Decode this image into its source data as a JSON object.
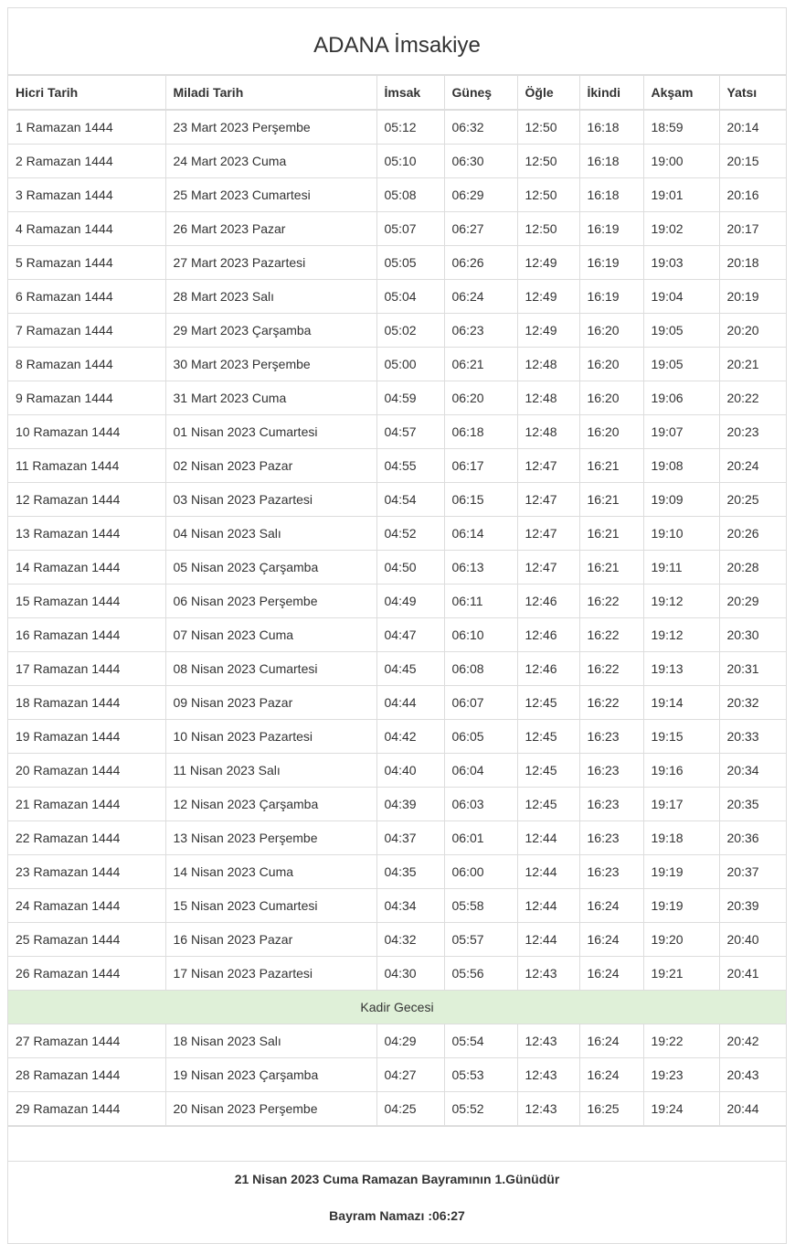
{
  "title": "ADANA İmsakiye",
  "columns": [
    "Hicri Tarih",
    "Miladi Tarih",
    "İmsak",
    "Güneş",
    "Öğle",
    "İkindi",
    "Akşam",
    "Yatsı"
  ],
  "rows": [
    [
      "1 Ramazan 1444",
      "23 Mart 2023 Perşembe",
      "05:12",
      "06:32",
      "12:50",
      "16:18",
      "18:59",
      "20:14"
    ],
    [
      "2 Ramazan 1444",
      "24 Mart 2023 Cuma",
      "05:10",
      "06:30",
      "12:50",
      "16:18",
      "19:00",
      "20:15"
    ],
    [
      "3 Ramazan 1444",
      "25 Mart 2023 Cumartesi",
      "05:08",
      "06:29",
      "12:50",
      "16:18",
      "19:01",
      "20:16"
    ],
    [
      "4 Ramazan 1444",
      "26 Mart 2023 Pazar",
      "05:07",
      "06:27",
      "12:50",
      "16:19",
      "19:02",
      "20:17"
    ],
    [
      "5 Ramazan 1444",
      "27 Mart 2023 Pazartesi",
      "05:05",
      "06:26",
      "12:49",
      "16:19",
      "19:03",
      "20:18"
    ],
    [
      "6 Ramazan 1444",
      "28 Mart 2023 Salı",
      "05:04",
      "06:24",
      "12:49",
      "16:19",
      "19:04",
      "20:19"
    ],
    [
      "7 Ramazan 1444",
      "29 Mart 2023 Çarşamba",
      "05:02",
      "06:23",
      "12:49",
      "16:20",
      "19:05",
      "20:20"
    ],
    [
      "8 Ramazan 1444",
      "30 Mart 2023 Perşembe",
      "05:00",
      "06:21",
      "12:48",
      "16:20",
      "19:05",
      "20:21"
    ],
    [
      "9 Ramazan 1444",
      "31 Mart 2023 Cuma",
      "04:59",
      "06:20",
      "12:48",
      "16:20",
      "19:06",
      "20:22"
    ],
    [
      "10 Ramazan 1444",
      "01 Nisan 2023 Cumartesi",
      "04:57",
      "06:18",
      "12:48",
      "16:20",
      "19:07",
      "20:23"
    ],
    [
      "11 Ramazan 1444",
      "02 Nisan 2023 Pazar",
      "04:55",
      "06:17",
      "12:47",
      "16:21",
      "19:08",
      "20:24"
    ],
    [
      "12 Ramazan 1444",
      "03 Nisan 2023 Pazartesi",
      "04:54",
      "06:15",
      "12:47",
      "16:21",
      "19:09",
      "20:25"
    ],
    [
      "13 Ramazan 1444",
      "04 Nisan 2023 Salı",
      "04:52",
      "06:14",
      "12:47",
      "16:21",
      "19:10",
      "20:26"
    ],
    [
      "14 Ramazan 1444",
      "05 Nisan 2023 Çarşamba",
      "04:50",
      "06:13",
      "12:47",
      "16:21",
      "19:11",
      "20:28"
    ],
    [
      "15 Ramazan 1444",
      "06 Nisan 2023 Perşembe",
      "04:49",
      "06:11",
      "12:46",
      "16:22",
      "19:12",
      "20:29"
    ],
    [
      "16 Ramazan 1444",
      "07 Nisan 2023 Cuma",
      "04:47",
      "06:10",
      "12:46",
      "16:22",
      "19:12",
      "20:30"
    ],
    [
      "17 Ramazan 1444",
      "08 Nisan 2023 Cumartesi",
      "04:45",
      "06:08",
      "12:46",
      "16:22",
      "19:13",
      "20:31"
    ],
    [
      "18 Ramazan 1444",
      "09 Nisan 2023 Pazar",
      "04:44",
      "06:07",
      "12:45",
      "16:22",
      "19:14",
      "20:32"
    ],
    [
      "19 Ramazan 1444",
      "10 Nisan 2023 Pazartesi",
      "04:42",
      "06:05",
      "12:45",
      "16:23",
      "19:15",
      "20:33"
    ],
    [
      "20 Ramazan 1444",
      "11 Nisan 2023 Salı",
      "04:40",
      "06:04",
      "12:45",
      "16:23",
      "19:16",
      "20:34"
    ],
    [
      "21 Ramazan 1444",
      "12 Nisan 2023 Çarşamba",
      "04:39",
      "06:03",
      "12:45",
      "16:23",
      "19:17",
      "20:35"
    ],
    [
      "22 Ramazan 1444",
      "13 Nisan 2023 Perşembe",
      "04:37",
      "06:01",
      "12:44",
      "16:23",
      "19:18",
      "20:36"
    ],
    [
      "23 Ramazan 1444",
      "14 Nisan 2023 Cuma",
      "04:35",
      "06:00",
      "12:44",
      "16:23",
      "19:19",
      "20:37"
    ],
    [
      "24 Ramazan 1444",
      "15 Nisan 2023 Cumartesi",
      "04:34",
      "05:58",
      "12:44",
      "16:24",
      "19:19",
      "20:39"
    ],
    [
      "25 Ramazan 1444",
      "16 Nisan 2023 Pazar",
      "04:32",
      "05:57",
      "12:44",
      "16:24",
      "19:20",
      "20:40"
    ],
    [
      "26 Ramazan 1444",
      "17 Nisan 2023 Pazartesi",
      "04:30",
      "05:56",
      "12:43",
      "16:24",
      "19:21",
      "20:41"
    ],
    {
      "special": "Kadir Gecesi"
    },
    [
      "27 Ramazan 1444",
      "18 Nisan 2023 Salı",
      "04:29",
      "05:54",
      "12:43",
      "16:24",
      "19:22",
      "20:42"
    ],
    [
      "28 Ramazan 1444",
      "19 Nisan 2023 Çarşamba",
      "04:27",
      "05:53",
      "12:43",
      "16:24",
      "19:23",
      "20:43"
    ],
    [
      "29 Ramazan 1444",
      "20 Nisan 2023 Perşembe",
      "04:25",
      "05:52",
      "12:43",
      "16:25",
      "19:24",
      "20:44"
    ]
  ],
  "colors": {
    "special_row_bg": "#dff0d8",
    "border": "#dddddd",
    "text": "#333333"
  },
  "footer": {
    "bayram": "21 Nisan 2023 Cuma Ramazan Bayramının 1.Günüdür",
    "namaz": "Bayram Namazı :06:27"
  }
}
